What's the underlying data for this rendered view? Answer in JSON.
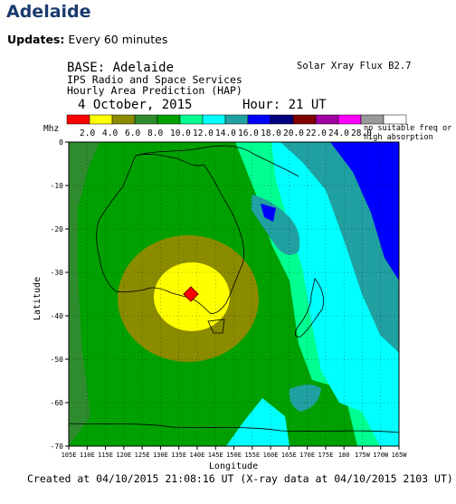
{
  "page": {
    "title": "Adelaide",
    "updates_label": "Updates:",
    "updates_value": "Every 60 minutes"
  },
  "figure": {
    "header": {
      "base": "BASE: Adelaide",
      "org": "IPS Radio and Space Services",
      "product": "Hourly Area Prediction (HAP)",
      "date": "4 October, 2015",
      "hour": "Hour: 21 UT",
      "flux": "Solar Xray Flux B2.7"
    },
    "legend": {
      "unit": "Mhz",
      "colors": [
        "#ff0000",
        "#ffff00",
        "#8b8b00",
        "#2e8b2e",
        "#00a000",
        "#00ff90",
        "#00ffff",
        "#20a0a0",
        "#0000ff",
        "#000080",
        "#800000",
        "#a000a0",
        "#ff00ff",
        "#999999",
        "#ffffff"
      ],
      "labels": [
        "2.0",
        "4.0",
        "6.0",
        "8.0",
        "10.0",
        "12.0",
        "14.0",
        "16.0",
        "18.0",
        "20.0",
        "22.0",
        "24.0",
        "28.0"
      ],
      "note_line1": "no suitable freq or",
      "note_line2": "high absorption"
    },
    "axes": {
      "ylabel": "Latitude",
      "xlabel": "Longitude",
      "yticks": [
        "0",
        "-10",
        "-20",
        "-30",
        "-40",
        "-50",
        "-60",
        "-70"
      ],
      "xticks": [
        "105E",
        "110E",
        "115E",
        "120E",
        "125E",
        "130E",
        "135E",
        "140E",
        "145E",
        "150E",
        "155E",
        "160E",
        "165E",
        "170E",
        "175E",
        "180",
        "175W",
        "170W",
        "165W"
      ]
    },
    "base_marker": "station-diamond",
    "footer": "Created at 04/10/2015 21:08:16 UT (X-ray data at 04/10/2015 2103 UT)"
  }
}
